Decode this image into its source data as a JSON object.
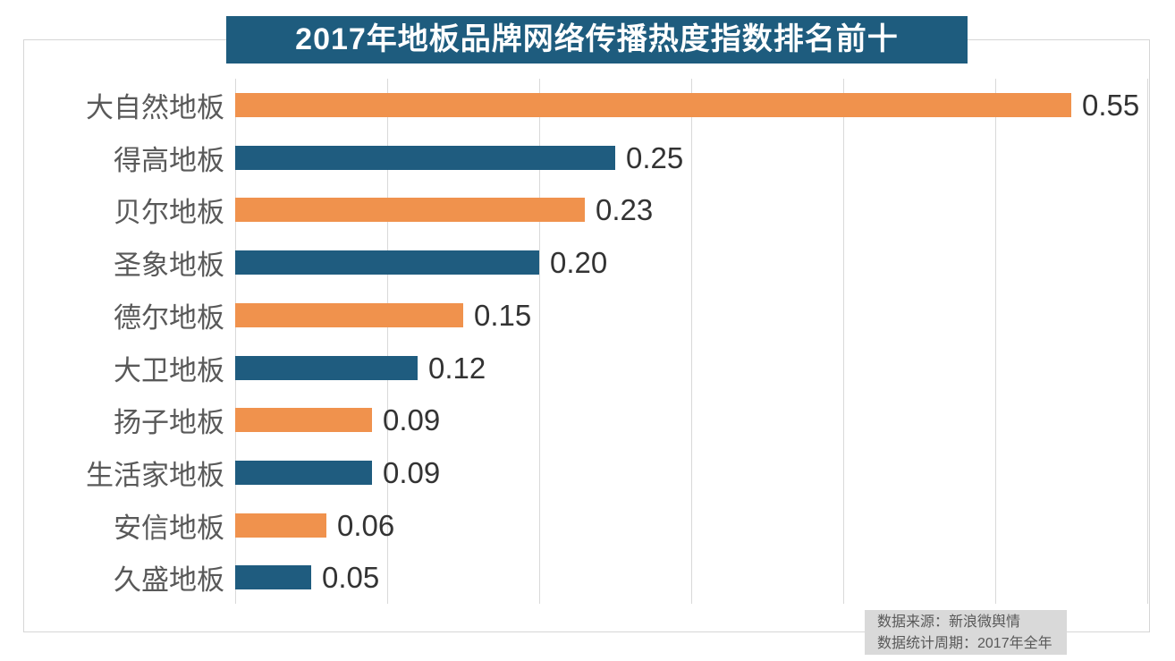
{
  "chart_data": {
    "type": "bar",
    "orientation": "horizontal",
    "title": "2017年地板品牌网络传播热度指数排名前十",
    "categories": [
      "大自然地板",
      "得高地板",
      "贝尔地板",
      "圣象地板",
      "德尔地板",
      "大卫地板",
      "扬子地板",
      "生活家地板",
      "安信地板",
      "久盛地板"
    ],
    "values": [
      0.55,
      0.25,
      0.23,
      0.2,
      0.15,
      0.12,
      0.09,
      0.09,
      0.06,
      0.05
    ],
    "value_labels": [
      "0.55",
      "0.25",
      "0.23",
      "0.20",
      "0.15",
      "0.12",
      "0.09",
      "0.09",
      "0.06",
      "0.05"
    ],
    "xlim": [
      0,
      0.6
    ],
    "gridline_interval": 0.1,
    "grid": true,
    "legend": "none",
    "bar_colors_alternating": [
      "#f0924d",
      "#1f5c7f"
    ],
    "title_banner_color": "#1e5c7e",
    "gridline_color": "#d9d9d9"
  },
  "footer": {
    "source_line1": "数据来源：新浪微舆情",
    "source_line2": "数据统计周期：2017年全年"
  }
}
